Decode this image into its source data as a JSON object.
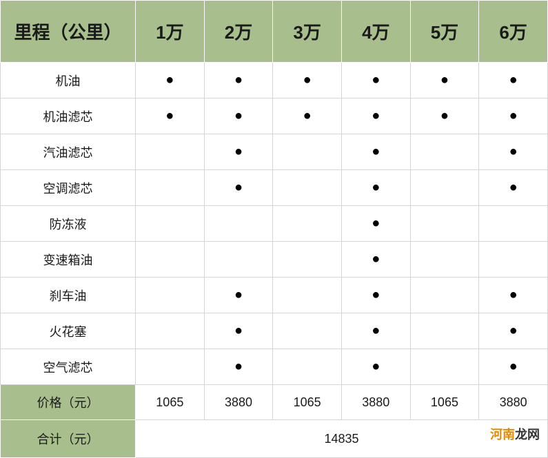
{
  "table": {
    "header_bg": "#a8bf8d",
    "border_color": "#d4d4d4",
    "row_header_label": "里程（公里）",
    "columns": [
      "1万",
      "2万",
      "3万",
      "4万",
      "5万",
      "6万"
    ],
    "items": [
      {
        "name": "机油",
        "marks": [
          true,
          true,
          true,
          true,
          true,
          true
        ]
      },
      {
        "name": "机油滤芯",
        "marks": [
          true,
          true,
          true,
          true,
          true,
          true
        ]
      },
      {
        "name": "汽油滤芯",
        "marks": [
          false,
          true,
          false,
          true,
          false,
          true
        ]
      },
      {
        "name": "空调滤芯",
        "marks": [
          false,
          true,
          false,
          true,
          false,
          true
        ]
      },
      {
        "name": "防冻液",
        "marks": [
          false,
          false,
          false,
          true,
          false,
          false
        ]
      },
      {
        "name": "变速箱油",
        "marks": [
          false,
          false,
          false,
          true,
          false,
          false
        ]
      },
      {
        "name": "刹车油",
        "marks": [
          false,
          true,
          false,
          true,
          false,
          true
        ]
      },
      {
        "name": "火花塞",
        "marks": [
          false,
          true,
          false,
          true,
          false,
          true
        ]
      },
      {
        "name": "空气滤芯",
        "marks": [
          false,
          true,
          false,
          true,
          false,
          true
        ]
      }
    ],
    "price_label": "价格（元）",
    "prices": [
      "1065",
      "3880",
      "1065",
      "3880",
      "1065",
      "3880"
    ],
    "total_label": "合计（元）",
    "total_value": "14835",
    "header_fontsize": 26,
    "body_fontsize": 18,
    "dot_glyph": "●"
  },
  "watermark": {
    "part_a": "河南",
    "part_b": "龙网",
    "color_a": "#e48a00",
    "color_b": "#333333"
  }
}
